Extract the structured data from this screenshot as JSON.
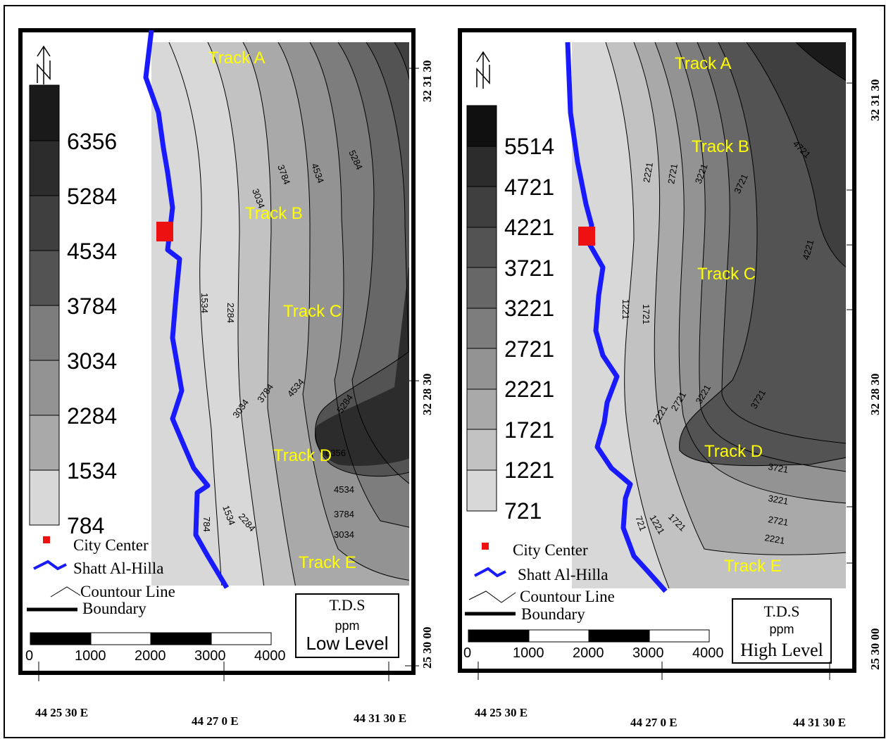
{
  "left_panel": {
    "tracks": [
      "Track A",
      "Track B",
      "Track C",
      "Track D",
      "Track E"
    ],
    "legend_values": [
      "6356",
      "5284",
      "4534",
      "3784",
      "3034",
      "2284",
      "1534",
      "784"
    ],
    "contour_labels": [
      "3034",
      "3784",
      "4534",
      "5284",
      "1534",
      "2284",
      "3034",
      "3784",
      "4534",
      "5284",
      "4534",
      "3784",
      "3034",
      "1534",
      "2284",
      "784"
    ],
    "track_d_contour_label": "6356",
    "info_title": "T.D.S",
    "info_unit": "ppm",
    "info_level": "Low Level",
    "scale_ticks": [
      "0",
      "1000",
      "2000",
      "3000",
      "4000"
    ],
    "lat_labels": [
      "32 31 30",
      "32 28 30",
      "25 30 00"
    ],
    "lon_labels": [
      "44 25 30 E",
      "44 27 0 E",
      "44 31 30 E"
    ]
  },
  "right_panel": {
    "tracks": [
      "Track A",
      "Track B",
      "Track C",
      "Track D",
      "Track E"
    ],
    "legend_values": [
      "5514",
      "4721",
      "4221",
      "3721",
      "3221",
      "2721",
      "2221",
      "1721",
      "1221",
      "721"
    ],
    "contour_labels": [
      "4721",
      "2221",
      "2721",
      "3221",
      "3721",
      "4221",
      "1221",
      "1721",
      "2221",
      "2721",
      "3221",
      "3721",
      "3721",
      "3221",
      "2721",
      "2221",
      "721",
      "1221",
      "1721"
    ],
    "info_title": "T.D.S",
    "info_unit": "ppm",
    "info_level": "High Level",
    "scale_ticks": [
      "0",
      "1000",
      "2000",
      "3000",
      "4000"
    ],
    "lat_labels": [
      "32 31 30",
      "32 28 30",
      "25 30 00"
    ],
    "lon_labels": [
      "44 25 30 E",
      "44 27 0 E",
      "44 31 30 E"
    ]
  },
  "legend_items": {
    "city_center": "City Center",
    "river": "Shatt Al-Hilla",
    "contour": "Countour Line",
    "boundary": "Boundary"
  },
  "colors": {
    "river": "#1a1aff",
    "city": "#ee1111",
    "track_label": "#ffff00",
    "fill_levels": [
      "#d8d8d8",
      "#c2c2c2",
      "#a9a9a9",
      "#939393",
      "#7d7d7d",
      "#676767",
      "#535353",
      "#3f3f3f",
      "#2c2c2c",
      "#1a1a1a"
    ]
  },
  "icons": {
    "north_arrow": "north-arrow-icon"
  }
}
